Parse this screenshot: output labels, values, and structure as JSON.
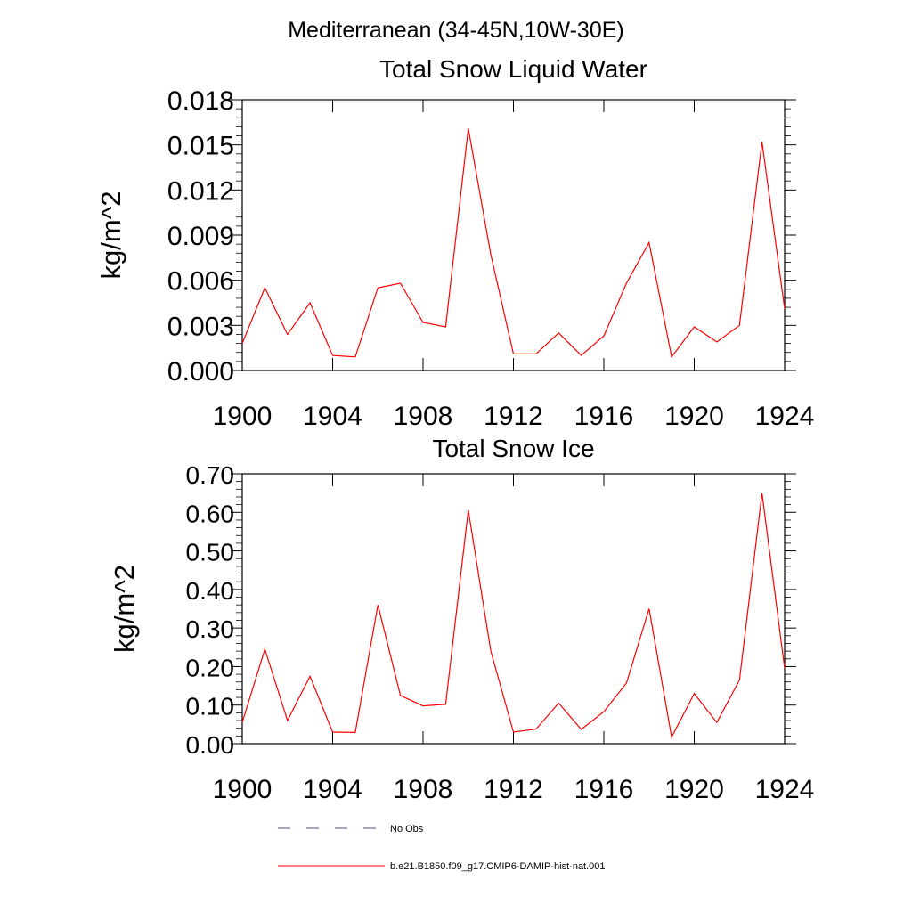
{
  "figure": {
    "title": "Mediterranean (34-45N,10W-30E)"
  },
  "chart_data": [
    {
      "type": "line",
      "title": "Total Snow Liquid Water",
      "xlabel": "",
      "ylabel": "kg/m^2",
      "xlim": [
        1900,
        1924
      ],
      "ylim": [
        0,
        0.018
      ],
      "xticks": [
        "1900",
        "1904",
        "1908",
        "1912",
        "1916",
        "1920",
        "1924"
      ],
      "yticks": [
        "0.000",
        "0.003",
        "0.006",
        "0.009",
        "0.012",
        "0.015",
        "0.018"
      ],
      "grid": false,
      "x": [
        1900,
        1901,
        1902,
        1903,
        1904,
        1905,
        1906,
        1907,
        1908,
        1909,
        1910,
        1911,
        1912,
        1913,
        1914,
        1915,
        1916,
        1917,
        1918,
        1919,
        1920,
        1921,
        1922,
        1923,
        1924
      ],
      "series": [
        {
          "name": "b.e21.B1850.f09_g17.CMIP6-DAMIP-hist-nat.001",
          "color": "#ff0000",
          "values": [
            0.0018,
            0.0055,
            0.0024,
            0.0045,
            0.001,
            0.0009,
            0.0055,
            0.0058,
            0.0032,
            0.0029,
            0.0161,
            0.0077,
            0.0011,
            0.0011,
            0.0025,
            0.001,
            0.0023,
            0.0058,
            0.0085,
            0.0009,
            0.0029,
            0.0019,
            0.003,
            0.0152,
            0.0041
          ]
        }
      ]
    },
    {
      "type": "line",
      "title": "Total Snow Ice",
      "xlabel": "",
      "ylabel": "kg/m^2",
      "xlim": [
        1900,
        1924
      ],
      "ylim": [
        0,
        0.7
      ],
      "xticks": [
        "1900",
        "1904",
        "1908",
        "1912",
        "1916",
        "1920",
        "1924"
      ],
      "yticks": [
        "0.00",
        "0.10",
        "0.20",
        "0.30",
        "0.40",
        "0.50",
        "0.60",
        "0.70"
      ],
      "grid": false,
      "x": [
        1900,
        1901,
        1902,
        1903,
        1904,
        1905,
        1906,
        1907,
        1908,
        1909,
        1910,
        1911,
        1912,
        1913,
        1914,
        1915,
        1916,
        1917,
        1918,
        1919,
        1920,
        1921,
        1922,
        1923,
        1924
      ],
      "series": [
        {
          "name": "b.e21.B1850.f09_g17.CMIP6-DAMIP-hist-nat.001",
          "color": "#ff0000",
          "values": [
            0.055,
            0.245,
            0.06,
            0.175,
            0.03,
            0.029,
            0.36,
            0.125,
            0.098,
            0.102,
            0.606,
            0.24,
            0.03,
            0.038,
            0.105,
            0.037,
            0.083,
            0.157,
            0.35,
            0.017,
            0.13,
            0.055,
            0.165,
            0.65,
            0.195
          ]
        }
      ]
    }
  ],
  "legend": {
    "items": [
      {
        "label": "No Obs",
        "color": "#4a4a8a",
        "style": "dashed"
      },
      {
        "label": "b.e21.B1850.f09_g17.CMIP6-DAMIP-hist-nat.001",
        "color": "#ff0000",
        "style": "solid"
      }
    ]
  }
}
